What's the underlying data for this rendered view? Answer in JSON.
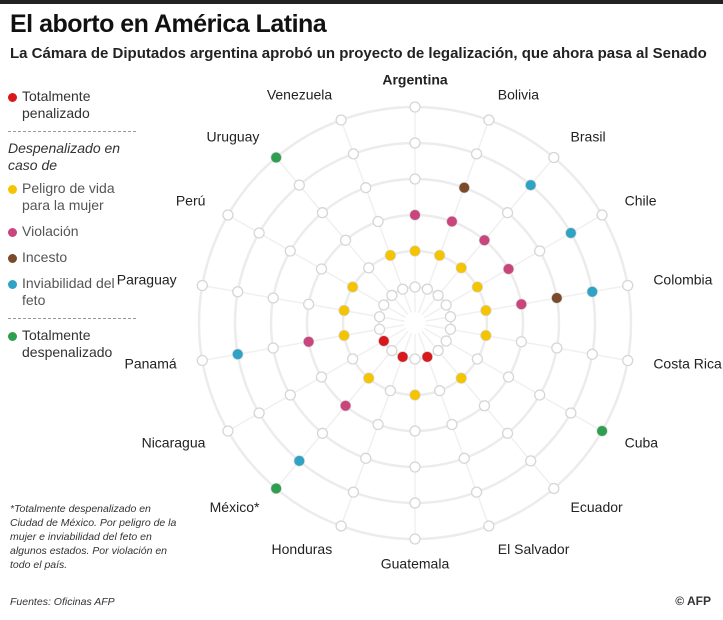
{
  "header": {
    "title": "El aborto en América Latina",
    "subtitle": "La Cámara de Diputados argentina aprobó un proyecto de legalización, que ahora pasa al Senado"
  },
  "legend": {
    "heading": "Despenalizado en caso de",
    "items": [
      {
        "label": "Totalmente penalizado",
        "color": "#d7191c"
      },
      {
        "label": "Peligro de vida para la mujer",
        "color": "#f5c400"
      },
      {
        "label": "Violación",
        "color": "#c9457c"
      },
      {
        "label": "Incesto",
        "color": "#7a4a2a"
      },
      {
        "label": "Inviabilidad del feto",
        "color": "#2fa3c4"
      },
      {
        "label": "Totalmente despenalizado",
        "color": "#2e9e4f"
      }
    ]
  },
  "countries": [
    {
      "name": "Argentina",
      "levels": [
        2,
        3
      ]
    },
    {
      "name": "Bolivia",
      "levels": [
        2,
        3,
        4
      ]
    },
    {
      "name": "Brasil",
      "levels": [
        2,
        3,
        5
      ]
    },
    {
      "name": "Chile",
      "levels": [
        2,
        3,
        5
      ]
    },
    {
      "name": "Colombia",
      "levels": [
        2,
        3,
        4,
        5
      ]
    },
    {
      "name": "Costa Rica",
      "levels": [
        2
      ]
    },
    {
      "name": "Cuba",
      "levels": [
        6
      ]
    },
    {
      "name": "Ecuador",
      "levels": [
        2
      ]
    },
    {
      "name": "El Salvador",
      "levels": [
        1
      ]
    },
    {
      "name": "Guatemala",
      "levels": [
        2
      ]
    },
    {
      "name": "Honduras",
      "levels": [
        1
      ]
    },
    {
      "name": "México*",
      "levels": [
        2,
        3,
        5,
        6
      ]
    },
    {
      "name": "Nicaragua",
      "levels": [
        1
      ]
    },
    {
      "name": "Panamá",
      "levels": [
        2,
        3,
        5
      ]
    },
    {
      "name": "Paraguay",
      "levels": [
        2
      ]
    },
    {
      "name": "Perú",
      "levels": [
        2
      ]
    },
    {
      "name": "Uruguay",
      "levels": [
        6
      ]
    },
    {
      "name": "Venezuela",
      "levels": [
        2
      ]
    }
  ],
  "footnote": "*Totalmente despenalizado en Ciudad de México. Por peligro de la mujer e inviabilidad del feto en algunos estados. Por violación en todo el país.",
  "source": "Fuentes: Oficinas AFP",
  "credit": "© AFP"
}
